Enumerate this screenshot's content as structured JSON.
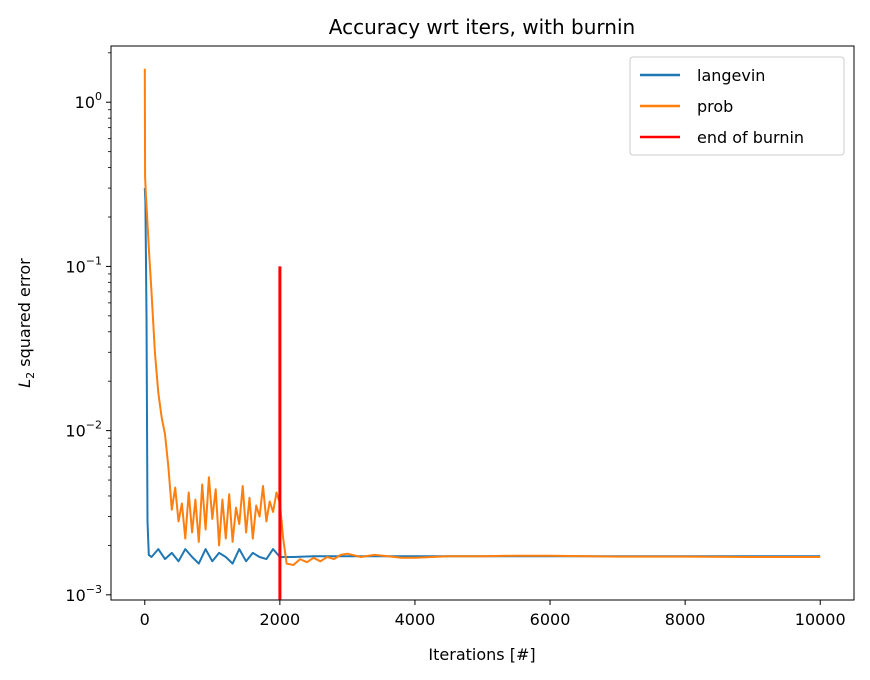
{
  "chart_data": {
    "type": "line",
    "title": "Accuracy wrt iters, with burnin",
    "xlabel": "Iterations [#]",
    "ylabel": {
      "base": "L",
      "sub": "2",
      "rest": " squared error"
    },
    "xlim": [
      -500,
      10500
    ],
    "ylim": [
      0.00093,
      2.2
    ],
    "yscale": "log",
    "grid": false,
    "legend_position": "top-right",
    "x_ticks": [
      0,
      2000,
      4000,
      6000,
      8000,
      10000
    ],
    "x_tick_labels": [
      "0",
      "2000",
      "4000",
      "6000",
      "8000",
      "10000"
    ],
    "y_ticks": [
      0.001,
      0.01,
      0.1,
      1
    ],
    "y_tick_labels": [
      {
        "base": "10",
        "exp": "−3"
      },
      {
        "base": "10",
        "exp": "−2"
      },
      {
        "base": "10",
        "exp": "−1"
      },
      {
        "base": "10",
        "exp": "0"
      }
    ],
    "series": [
      {
        "name": "langevin",
        "color": "#1f77b4",
        "x": [
          0,
          10,
          25,
          40,
          60,
          100,
          200,
          300,
          400,
          500,
          600,
          700,
          800,
          900,
          1000,
          1100,
          1200,
          1300,
          1400,
          1500,
          1600,
          1700,
          1800,
          1900,
          2000,
          2050,
          2200,
          2500,
          3000,
          4000,
          5000,
          6000,
          7000,
          8000,
          9000,
          10000
        ],
        "y": [
          0.3,
          0.25,
          0.05,
          0.0028,
          0.00175,
          0.0017,
          0.0019,
          0.00165,
          0.0018,
          0.0016,
          0.0019,
          0.0017,
          0.00155,
          0.0019,
          0.0016,
          0.0018,
          0.0017,
          0.00155,
          0.0019,
          0.0016,
          0.0018,
          0.0017,
          0.00165,
          0.0019,
          0.0017,
          0.0017,
          0.0017,
          0.00172,
          0.00172,
          0.00172,
          0.00172,
          0.00172,
          0.00172,
          0.00172,
          0.00172,
          0.00172
        ]
      },
      {
        "name": "prob",
        "color": "#ff7f0e",
        "x": [
          0,
          5,
          15,
          30,
          60,
          100,
          150,
          200,
          250,
          300,
          350,
          400,
          450,
          500,
          550,
          600,
          650,
          700,
          750,
          800,
          850,
          900,
          950,
          1000,
          1050,
          1100,
          1150,
          1200,
          1250,
          1300,
          1350,
          1400,
          1450,
          1500,
          1550,
          1600,
          1650,
          1700,
          1750,
          1800,
          1850,
          1900,
          1950,
          2000,
          2050,
          2100,
          2200,
          2300,
          2400,
          2500,
          2600,
          2700,
          2800,
          2900,
          3000,
          3200,
          3400,
          3600,
          3800,
          4000,
          4500,
          5000,
          5500,
          6000,
          7000,
          8000,
          9000,
          10000
        ],
        "y": [
          1.6,
          0.35,
          0.28,
          0.22,
          0.13,
          0.07,
          0.03,
          0.017,
          0.012,
          0.0095,
          0.006,
          0.0033,
          0.0045,
          0.0028,
          0.0036,
          0.0022,
          0.0042,
          0.0024,
          0.0038,
          0.0021,
          0.0047,
          0.0025,
          0.0052,
          0.0029,
          0.0044,
          0.002,
          0.0038,
          0.0022,
          0.0041,
          0.0021,
          0.0034,
          0.0027,
          0.0046,
          0.0024,
          0.0039,
          0.0022,
          0.0035,
          0.003,
          0.0046,
          0.0028,
          0.0037,
          0.0032,
          0.0042,
          0.0036,
          0.0022,
          0.00155,
          0.00152,
          0.00165,
          0.00158,
          0.00168,
          0.0016,
          0.0017,
          0.00165,
          0.00175,
          0.00178,
          0.0017,
          0.00175,
          0.00172,
          0.00168,
          0.00168,
          0.00172,
          0.00172,
          0.00173,
          0.00173,
          0.00171,
          0.00171,
          0.0017,
          0.0017
        ]
      },
      {
        "name": "end of burnin",
        "color": "#ff0000",
        "x": [
          2000,
          2000
        ],
        "y": [
          0.00093,
          0.1
        ]
      }
    ]
  }
}
